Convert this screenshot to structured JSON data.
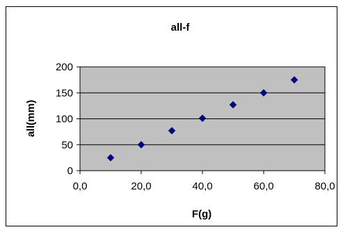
{
  "chart_data": {
    "type": "scatter",
    "title": "all-f",
    "xlabel": "F(g)",
    "ylabel": "all(mm)",
    "x": [
      10,
      20,
      30,
      40,
      50,
      60,
      70
    ],
    "y": [
      25,
      50,
      77,
      101,
      127,
      150,
      175
    ],
    "xlim": [
      0,
      80
    ],
    "ylim": [
      0,
      200
    ],
    "x_ticks": [
      0,
      20,
      40,
      60,
      80
    ],
    "y_ticks": [
      0,
      50,
      100,
      150,
      200
    ],
    "x_tick_labels": [
      "0,0",
      "20,0",
      "40,0",
      "60,0",
      "80,0"
    ],
    "y_tick_labels": [
      "0",
      "50",
      "100",
      "150",
      "200"
    ],
    "grid": "horizontal",
    "legend": "none",
    "colors": {
      "plot_area": "#c0c0c0",
      "marker": "#000080",
      "gridline": "#000000",
      "border": "#000000"
    }
  }
}
